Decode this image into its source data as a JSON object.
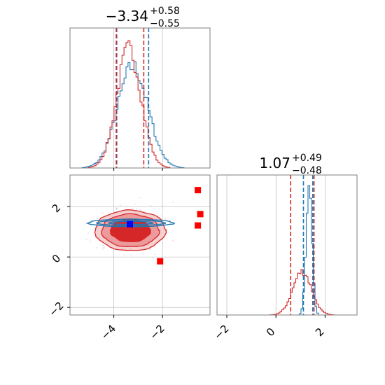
{
  "chart_data": [
    {
      "panel": "top-left",
      "type": "histogram",
      "title": {
        "value": "−3.34",
        "sup": "+0.58",
        "sub": "−0.55"
      },
      "x_range": [
        -5.8,
        -0.05
      ],
      "x_ticks": [
        "−4",
        "−2"
      ],
      "x_tick_values": [
        -4,
        -2
      ],
      "series": [
        {
          "color": "#1f77b4",
          "quantile_lines": [
            -3.88,
            -2.57
          ]
        },
        {
          "color": "#d62728",
          "quantile_lines": [
            -3.9,
            -2.77
          ]
        }
      ]
    },
    {
      "panel": "bottom-right",
      "type": "histogram",
      "title": {
        "value": "1.07",
        "sup": "+0.49",
        "sub": "−0.48"
      },
      "x_range": [
        -2.4,
        3.3
      ],
      "x_ticks": [
        "−2",
        "0",
        "2"
      ],
      "x_tick_values": [
        -2,
        0,
        2
      ],
      "series": [
        {
          "color": "#1f77b4",
          "quantile_lines": [
            1.12,
            1.5
          ]
        },
        {
          "color": "#d62728",
          "quantile_lines": [
            0.6,
            1.55
          ]
        }
      ]
    },
    {
      "panel": "bottom-left",
      "type": "contour-scatter",
      "x_range": [
        -5.8,
        -0.05
      ],
      "y_range": [
        -2.3,
        3.25
      ],
      "x_ticks": [
        "−4",
        "−2"
      ],
      "x_tick_values": [
        -4,
        -2
      ],
      "y_ticks": [
        "−2",
        "0",
        "2"
      ],
      "y_tick_values": [
        -2,
        0,
        2
      ],
      "red_markers": [
        {
          "x": -0.55,
          "y": 2.65
        },
        {
          "x": -0.45,
          "y": 1.7
        },
        {
          "x": -0.55,
          "y": 1.25
        },
        {
          "x": -2.1,
          "y": -0.17
        }
      ],
      "blue_marker": {
        "x": -3.34,
        "y": 1.3
      },
      "colors": {
        "red": "#d62728",
        "blue": "#1f77b4",
        "marker_red": "#ff0000",
        "marker_blue": "#0000ff"
      }
    }
  ]
}
